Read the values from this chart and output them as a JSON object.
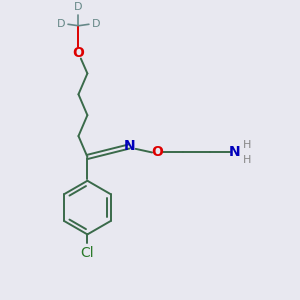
{
  "bg_color": "#e8e8f0",
  "bond_color": "#3a6a4a",
  "o_color": "#dd0000",
  "n_color": "#0000bb",
  "cl_color": "#2a7a2a",
  "h_color": "#888888",
  "d_color": "#668888",
  "font_size": 10,
  "small_font": 8,
  "figsize": [
    3.0,
    3.0
  ],
  "dpi": 100,
  "xlim": [
    0,
    10
  ],
  "ylim": [
    0,
    10
  ]
}
